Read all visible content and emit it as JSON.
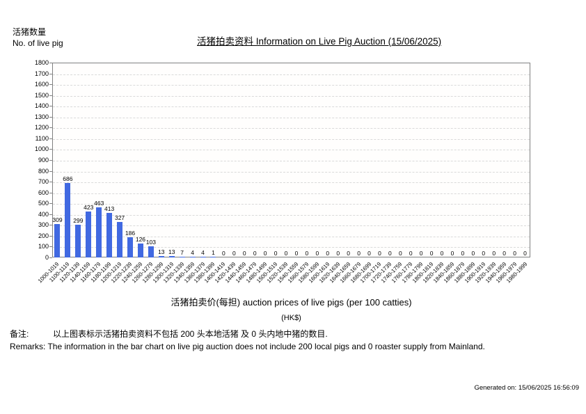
{
  "page": {
    "y_axis_label_zh": "活猪数量",
    "y_axis_label_en": "No. of live pig",
    "title": "活猪拍卖资料 Information on Live Pig Auction (15/06/2025)",
    "x_axis_title": "活猪拍卖价(每担) auction prices of live pigs (per 100 catties)",
    "x_axis_unit": "(HK$)",
    "remarks_zh_label": "备注:",
    "remarks_zh": "以上图表标示活猪拍卖资料不包括 200 头本地活猪 及 0 头内地中猪的数目.",
    "remarks_en": "Remarks: The information in the bar chart on live pig auction does not include 200 local pigs and 0 roaster supply from Mainland.",
    "generated_on": "Generated on: 15/06/2025 16:56:09"
  },
  "chart_data": {
    "type": "bar",
    "title": "活猪拍卖资料 Information on Live Pig Auction (15/06/2025)",
    "xlabel": "活猪拍卖价(每担) auction prices of live pigs (per 100 catties) (HK$)",
    "ylabel": "活猪数量 No. of live pig",
    "ylim": [
      0,
      1800
    ],
    "y_tick_step": 100,
    "grid": true,
    "legend": "none",
    "bar_color": "#4169E1",
    "categories": [
      "1000-1019",
      "1100-1119",
      "1120-1139",
      "1140-1159",
      "1160-1179",
      "1180-1199",
      "1200-1219",
      "1220-1239",
      "1240-1259",
      "1260-1279",
      "1280-1299",
      "1300-1319",
      "1320-1339",
      "1340-1359",
      "1360-1379",
      "1380-1399",
      "1400-1419",
      "1420-1439",
      "1440-1459",
      "1460-1479",
      "1480-1499",
      "1500-1519",
      "1520-1539",
      "1540-1559",
      "1560-1579",
      "1580-1599",
      "1600-1619",
      "1620-1639",
      "1640-1659",
      "1660-1679",
      "1680-1699",
      "1700-1719",
      "1720-1739",
      "1740-1759",
      "1760-1779",
      "1780-1799",
      "1800-1819",
      "1820-1839",
      "1840-1859",
      "1860-1879",
      "1880-1899",
      "1900-1919",
      "1920-1939",
      "1940-1959",
      "1960-1979",
      "1980-1999"
    ],
    "values": [
      309,
      686,
      299,
      423,
      463,
      413,
      327,
      186,
      126,
      103,
      13,
      13,
      7,
      4,
      4,
      1,
      0,
      0,
      0,
      0,
      0,
      0,
      0,
      0,
      0,
      0,
      0,
      0,
      0,
      0,
      0,
      0,
      0,
      0,
      0,
      0,
      0,
      0,
      0,
      0,
      0,
      0,
      0,
      0,
      0,
      0
    ]
  }
}
